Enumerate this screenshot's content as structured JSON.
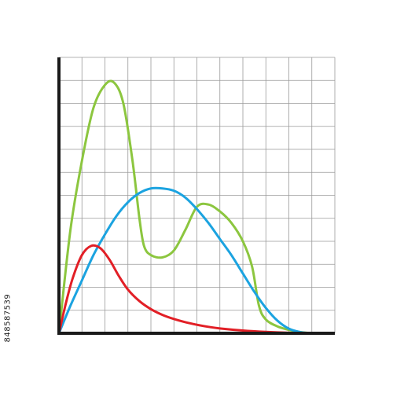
{
  "chart_data": {
    "type": "line",
    "title": "",
    "xlabel": "",
    "ylabel": "",
    "xlim": [
      0,
      12
    ],
    "ylim": [
      0,
      12
    ],
    "grid": true,
    "legend": "none",
    "series": [
      {
        "color": "#8cc63f",
        "x": [
          0,
          0.5,
          1,
          1.5,
          2,
          2.4,
          2.8,
          3.2,
          3.5,
          3.7,
          4,
          4.5,
          5,
          5.5,
          6,
          6.5,
          7,
          7.5,
          8,
          8.4,
          8.7,
          9,
          9.5,
          10,
          10.5,
          11
        ],
        "y": [
          0,
          4.5,
          7.5,
          9.8,
          10.8,
          10.9,
          10.0,
          7.5,
          5.0,
          3.8,
          3.4,
          3.3,
          3.6,
          4.5,
          5.5,
          5.6,
          5.3,
          4.8,
          4.0,
          2.9,
          1.2,
          0.6,
          0.3,
          0.15,
          0.05,
          0
        ]
      },
      {
        "color": "#1ba3e0",
        "x": [
          0,
          0.5,
          1,
          1.5,
          2,
          2.5,
          3,
          3.5,
          4,
          4.5,
          5,
          5.5,
          6,
          6.5,
          7,
          7.5,
          8,
          8.5,
          9,
          9.5,
          10,
          10.5,
          11
        ],
        "y": [
          0,
          1.2,
          2.3,
          3.4,
          4.3,
          5.1,
          5.7,
          6.1,
          6.3,
          6.3,
          6.2,
          5.9,
          5.4,
          4.8,
          4.1,
          3.4,
          2.6,
          1.8,
          1.1,
          0.55,
          0.2,
          0.05,
          0
        ]
      },
      {
        "color": "#e21f26",
        "x": [
          0,
          0.3,
          0.6,
          1,
          1.4,
          1.8,
          2.2,
          2.6,
          3,
          3.5,
          4,
          4.5,
          5,
          5.5,
          6,
          6.5,
          7,
          8,
          9,
          10,
          11
        ],
        "y": [
          0,
          1.3,
          2.4,
          3.4,
          3.8,
          3.7,
          3.2,
          2.5,
          1.9,
          1.4,
          1.05,
          0.8,
          0.62,
          0.48,
          0.37,
          0.28,
          0.21,
          0.12,
          0.06,
          0.02,
          0
        ]
      }
    ]
  },
  "side_id": "848587539"
}
